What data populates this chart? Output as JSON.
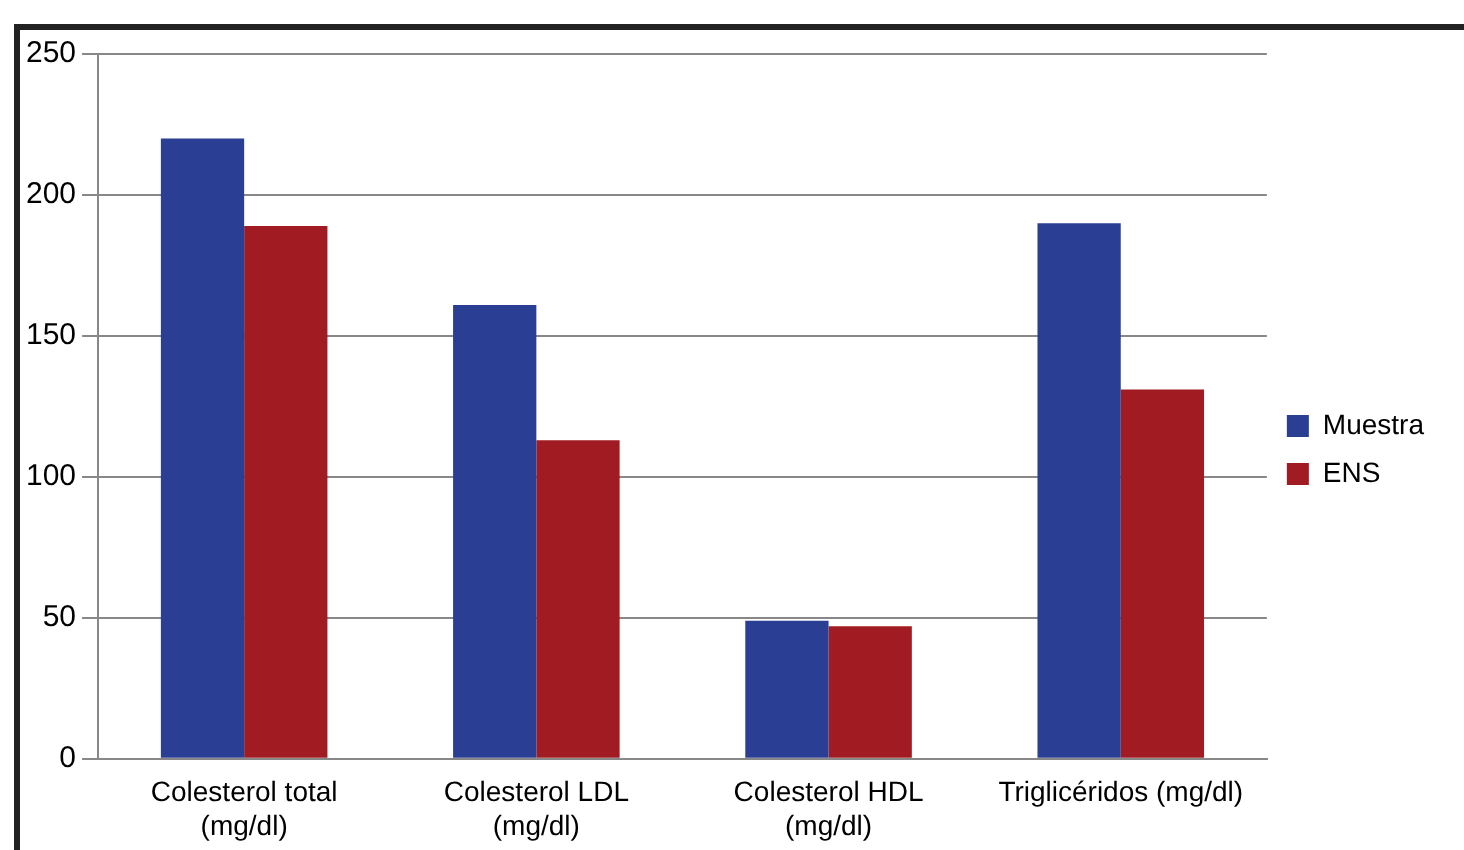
{
  "chart_data": {
    "type": "bar",
    "categories": [
      "Colesterol total\n(mg/dl)",
      "Colesterol LDL\n(mg/dl)",
      "Colesterol HDL\n(mg/dl)",
      "Triglicéridos (mg/dl)"
    ],
    "series": [
      {
        "name": "Muestra",
        "color": "#2a3f94",
        "values": [
          220,
          161,
          49,
          190
        ]
      },
      {
        "name": "ENS",
        "color": "#a01c22",
        "values": [
          189,
          113,
          47,
          131
        ]
      }
    ],
    "ylim": [
      0,
      250
    ],
    "yticks": [
      0,
      50,
      100,
      150,
      200,
      250
    ],
    "grid": "y",
    "legend": "right"
  }
}
